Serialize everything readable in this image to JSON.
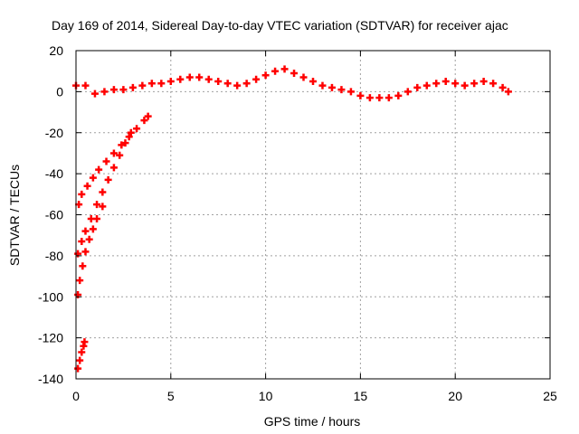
{
  "chart_data": {
    "type": "scatter",
    "title": "Day 169 of 2014, Sidereal Day-to-day VTEC variation (SDTVAR) for receiver ajac",
    "xlabel": "GPS time / hours",
    "ylabel": "SDTVAR / TECUs",
    "xlim": [
      0,
      25
    ],
    "ylim": [
      -140,
      20
    ],
    "xticks": [
      0,
      5,
      10,
      15,
      20,
      25
    ],
    "yticks": [
      -140,
      -120,
      -100,
      -80,
      -60,
      -40,
      -20,
      0,
      20
    ],
    "grid": true,
    "legend": "none",
    "marker": "plus",
    "color": "#ff0000",
    "series": [
      {
        "x": [
          0.0,
          0.5,
          1.0,
          1.5,
          2.0,
          2.5,
          3.0,
          3.5,
          4.0,
          4.5,
          5.0,
          5.5,
          6.0,
          6.5,
          7.0,
          7.5,
          8.0,
          8.5,
          9.0,
          9.5,
          10.0,
          10.5,
          11.0,
          11.5,
          12.0,
          12.5,
          13.0,
          13.5,
          14.0,
          14.5,
          15.0,
          15.5,
          16.0,
          16.5,
          17.0,
          17.5,
          18.0,
          18.5,
          19.0,
          19.5,
          20.0,
          20.5,
          21.0,
          21.5,
          22.0,
          22.5,
          22.8
        ],
        "y": [
          3,
          3,
          -1,
          0,
          1,
          1,
          2,
          3,
          4,
          4,
          5,
          6,
          7,
          7,
          6,
          5,
          4,
          3,
          4,
          6,
          8,
          10,
          11,
          9,
          7,
          5,
          3,
          2,
          1,
          0,
          -2,
          -3,
          -3,
          -3,
          -2,
          0,
          2,
          3,
          4,
          5,
          4,
          3,
          4,
          5,
          4,
          2,
          0
        ]
      },
      {
        "x": [
          0.15,
          0.3,
          0.6,
          0.9,
          1.2,
          1.6,
          2.0,
          2.4,
          2.8,
          3.2,
          3.6,
          3.8
        ],
        "y": [
          -55,
          -50,
          -46,
          -42,
          -38,
          -34,
          -30,
          -26,
          -22,
          -18,
          -14,
          -12
        ]
      },
      {
        "x": [
          0.1,
          0.3,
          0.5,
          0.8,
          1.1,
          1.4,
          1.7,
          2.0,
          2.3,
          2.6,
          2.9
        ],
        "y": [
          -79,
          -73,
          -68,
          -62,
          -55,
          -49,
          -43,
          -37,
          -31,
          -25,
          -20
        ]
      },
      {
        "x": [
          0.1,
          0.2,
          0.35,
          0.5,
          0.7,
          0.9,
          1.1,
          1.4
        ],
        "y": [
          -99,
          -92,
          -85,
          -78,
          -72,
          -67,
          -62,
          -56
        ]
      },
      {
        "x": [
          0.1,
          0.2,
          0.3,
          0.4,
          0.45
        ],
        "y": [
          -135,
          -131,
          -127,
          -124,
          -122
        ]
      }
    ]
  }
}
